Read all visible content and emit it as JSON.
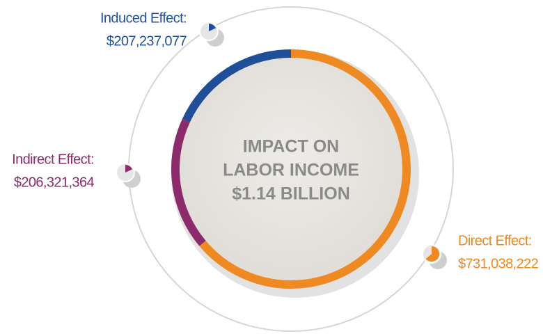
{
  "chart_data": {
    "type": "donut",
    "title": [
      "IMPACT ON",
      "LABOR INCOME"
    ],
    "total_label": "$1.14 BILLION",
    "categories": [
      "Direct Effect:",
      "Indirect Effect:",
      "Induced Effect:"
    ],
    "values": [
      731038222,
      206321364,
      207237077
    ],
    "value_labels": [
      "$731,038,222",
      "$206,321,364",
      "$207,237,077"
    ],
    "colors": [
      "#ef8a22",
      "#8c2a6c",
      "#1f4f98"
    ]
  }
}
